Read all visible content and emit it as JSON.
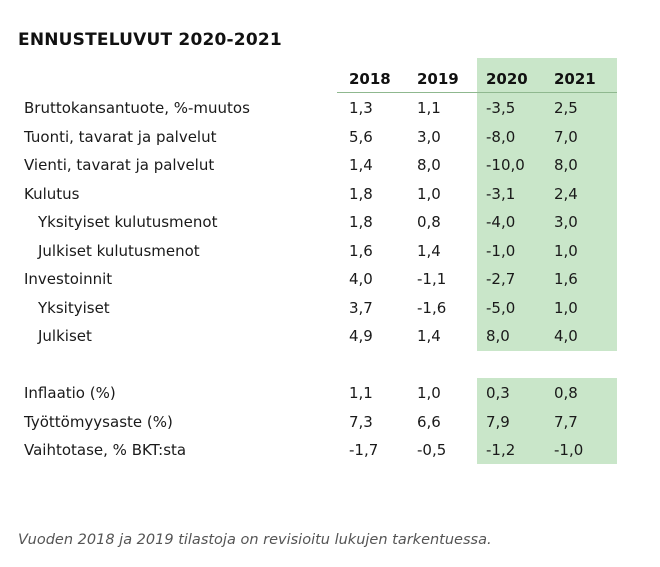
{
  "title": "ENNUSTELUVUT 2020-2021",
  "headers": [
    "2018",
    "2019",
    "2020",
    "2021"
  ],
  "rows": [
    {
      "label": "Bruttokansantuote, %-muutos",
      "values": [
        "1,3",
        "1,1",
        "-3,5",
        "2,5"
      ]
    },
    {
      "label": "Tuonti, tavarat ja palvelut",
      "values": [
        "5,6",
        "3,0",
        "-8,0",
        "7,0"
      ]
    },
    {
      "label": "Vienti, tavarat ja palvelut",
      "values": [
        "1,4",
        "8,0",
        "-10,0",
        "8,0"
      ]
    },
    {
      "label": "Kulutus",
      "values": [
        "1,8",
        "1,0",
        "-3,1",
        "2,4"
      ]
    },
    {
      "label": "Yksityiset kulutusmenot",
      "values": [
        "1,8",
        "0,8",
        "-4,0",
        "3,0"
      ]
    },
    {
      "label": "Julkiset kulutusmenot",
      "values": [
        "1,6",
        "1,4",
        "-1,0",
        "1,0"
      ]
    },
    {
      "label": "Investoinnit",
      "values": [
        "4,0",
        "-1,1",
        "-2,7",
        "1,6"
      ]
    },
    {
      "label": "Yksityiset",
      "values": [
        "3,7",
        "-1,6",
        "-5,0",
        "1,0"
      ]
    },
    {
      "label": "Julkiset",
      "values": [
        "4,9",
        "1,4",
        "8,0",
        "4,0"
      ]
    },
    {
      "label": "Inflaatio (%)",
      "values": [
        "1,1",
        "1,0",
        "0,3",
        "0,8"
      ]
    },
    {
      "label": "Työttömyysaste (%)",
      "values": [
        "7,3",
        "6,6",
        "7,9",
        "7,7"
      ]
    },
    {
      "label": "Vaihtotase, % BKT:sta",
      "values": [
        "-1,7",
        "-0,5",
        "-1,2",
        "-1,0"
      ]
    }
  ],
  "footnote": "Vuoden 2018 ja 2019 tilastoja on revisioitu lukujen tarkentuessa.",
  "colors": {
    "forecast_shade": "#c9e6c9"
  }
}
